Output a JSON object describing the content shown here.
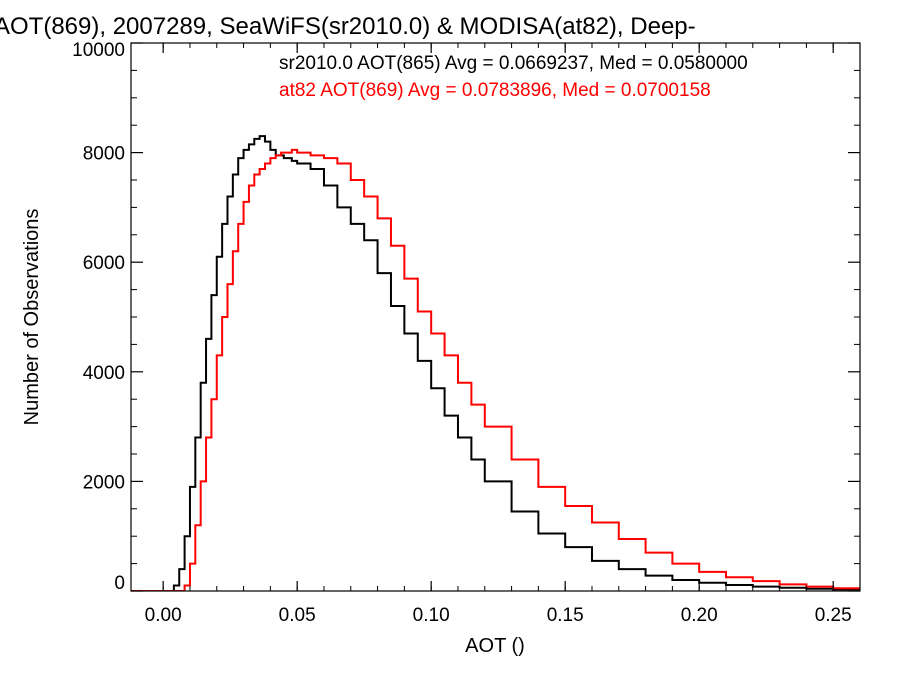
{
  "chart_data": {
    "type": "line",
    "title": "AOT(869), 2007289, SeaWiFS(sr2010.0) & MODISA(at82), Deep-",
    "xlabel": "AOT ()",
    "ylabel": "Number of Observations",
    "xlim": [
      -0.012,
      0.26
    ],
    "ylim": [
      0,
      10000
    ],
    "x_ticks": [
      0.0,
      0.05,
      0.1,
      0.15,
      0.2,
      0.25
    ],
    "x_tick_labels": [
      "0.00",
      "0.05",
      "0.10",
      "0.15",
      "0.20",
      "0.25"
    ],
    "y_ticks": [
      0,
      2000,
      4000,
      6000,
      8000,
      10000
    ],
    "y_tick_labels": [
      "0",
      "2000",
      "4000",
      "6000",
      "8000",
      "10000"
    ],
    "grid": false,
    "legend_position": "top-right",
    "series": [
      {
        "name": "sr2010.0 AOT(865) Avg = 0.0669237, Med = 0.0580000",
        "color": "#000000",
        "x": [
          -0.012,
          0.0,
          0.004,
          0.006,
          0.008,
          0.01,
          0.012,
          0.014,
          0.016,
          0.018,
          0.02,
          0.022,
          0.024,
          0.026,
          0.028,
          0.03,
          0.032,
          0.034,
          0.036,
          0.038,
          0.04,
          0.042,
          0.045,
          0.048,
          0.05,
          0.055,
          0.06,
          0.065,
          0.07,
          0.075,
          0.08,
          0.085,
          0.09,
          0.095,
          0.1,
          0.105,
          0.11,
          0.115,
          0.12,
          0.13,
          0.14,
          0.15,
          0.16,
          0.17,
          0.18,
          0.19,
          0.2,
          0.21,
          0.22,
          0.23,
          0.24,
          0.25,
          0.26
        ],
        "y": [
          0,
          0,
          100,
          400,
          1000,
          1900,
          2800,
          3800,
          4600,
          5400,
          6100,
          6700,
          7200,
          7600,
          7900,
          8050,
          8150,
          8250,
          8300,
          8200,
          8050,
          7950,
          7900,
          7850,
          7800,
          7700,
          7400,
          7000,
          6700,
          6400,
          5800,
          5200,
          4700,
          4200,
          3700,
          3200,
          2800,
          2400,
          2000,
          1450,
          1050,
          800,
          550,
          400,
          280,
          200,
          150,
          110,
          80,
          60,
          40,
          30,
          20
        ]
      },
      {
        "name": "at82 AOT(869) Avg = 0.0783896, Med = 0.0700158",
        "color": "#ff0000",
        "x": [
          -0.012,
          0.0,
          0.006,
          0.008,
          0.01,
          0.012,
          0.014,
          0.016,
          0.018,
          0.02,
          0.022,
          0.024,
          0.026,
          0.028,
          0.03,
          0.032,
          0.034,
          0.036,
          0.038,
          0.04,
          0.042,
          0.044,
          0.046,
          0.048,
          0.05,
          0.055,
          0.06,
          0.065,
          0.07,
          0.075,
          0.08,
          0.085,
          0.09,
          0.095,
          0.1,
          0.105,
          0.11,
          0.115,
          0.12,
          0.13,
          0.14,
          0.15,
          0.16,
          0.17,
          0.18,
          0.19,
          0.2,
          0.21,
          0.22,
          0.23,
          0.24,
          0.25,
          0.26
        ],
        "y": [
          0,
          0,
          0,
          100,
          500,
          1200,
          2000,
          2800,
          3500,
          4300,
          5000,
          5600,
          6200,
          6700,
          7100,
          7400,
          7600,
          7700,
          7800,
          7900,
          7950,
          8000,
          8000,
          8050,
          8000,
          7950,
          7900,
          7800,
          7500,
          7200,
          6800,
          6300,
          5700,
          5100,
          4700,
          4300,
          3800,
          3400,
          3000,
          2400,
          1900,
          1550,
          1250,
          950,
          700,
          500,
          350,
          250,
          180,
          120,
          80,
          50,
          30
        ]
      }
    ]
  }
}
